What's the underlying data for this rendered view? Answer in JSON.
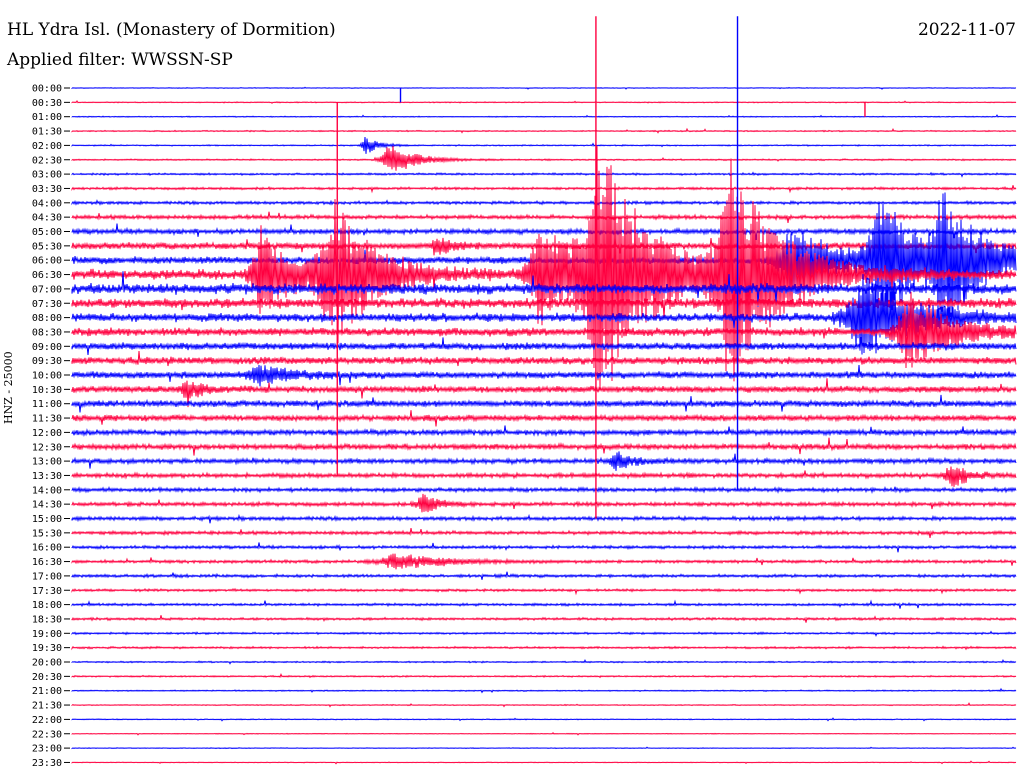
{
  "header": {
    "station_title": "HL Ydra Isl. (Monastery of Dormition)",
    "filter_label": "Applied filter: WWSSN-SP",
    "date": "2022-11-07"
  },
  "chart_data": {
    "type": "line",
    "title": "HL Ydra Isl. (Monastery of Dormition)",
    "subtitle": "Applied filter: WWSSN-SP",
    "date": "2022-11-07",
    "ylabel": "HNZ - 25000",
    "xlabel": "",
    "grid": false,
    "colors": {
      "blue": "#0000ff",
      "red": "#ff0040"
    },
    "row_labels": [
      "00:00",
      "00:30",
      "01:00",
      "01:30",
      "02:00",
      "02:30",
      "03:00",
      "03:30",
      "04:00",
      "04:30",
      "05:00",
      "05:30",
      "06:00",
      "06:30",
      "07:00",
      "07:30",
      "08:00",
      "08:30",
      "09:00",
      "09:30",
      "10:00",
      "10:30",
      "11:00",
      "11:30",
      "12:00",
      "12:30",
      "13:00",
      "13:30",
      "14:00",
      "14:30",
      "15:00",
      "15:30",
      "16:00",
      "16:30",
      "17:00",
      "17:30",
      "18:00",
      "18:30",
      "19:00",
      "19:30",
      "20:00",
      "20:30",
      "21:00",
      "21:30",
      "22:00",
      "22:30",
      "23:00",
      "23:30"
    ],
    "row_noise": [
      0.3,
      0.4,
      0.4,
      0.5,
      0.5,
      0.6,
      0.8,
      1.0,
      1.2,
      1.6,
      2.0,
      2.6,
      3.0,
      4.2,
      4.4,
      4.0,
      3.6,
      3.4,
      3.0,
      3.0,
      2.8,
      2.6,
      2.6,
      2.4,
      2.2,
      2.2,
      2.0,
      1.8,
      1.6,
      1.6,
      1.5,
      1.4,
      1.2,
      1.2,
      1.2,
      1.0,
      1.0,
      1.0,
      0.8,
      0.8,
      0.6,
      0.6,
      0.5,
      0.4,
      0.4,
      0.3,
      0.3,
      0.3
    ],
    "events": [
      {
        "row": 4,
        "x": 0.31,
        "amp": 10,
        "dur": 0.015
      },
      {
        "row": 5,
        "x": 0.335,
        "amp": 18,
        "dur": 0.03
      },
      {
        "row": 13,
        "x": 0.2,
        "amp": 45,
        "dur": 0.04
      },
      {
        "row": 13,
        "x": 0.274,
        "amp": 75,
        "dur": 0.05
      },
      {
        "row": 13,
        "x": 0.495,
        "amp": 55,
        "dur": 0.05
      },
      {
        "row": 13,
        "x": 0.557,
        "amp": 130,
        "dur": 0.06
      },
      {
        "row": 13,
        "x": 0.695,
        "amp": 110,
        "dur": 0.06
      },
      {
        "row": 12,
        "x": 0.76,
        "amp": 40,
        "dur": 0.05
      },
      {
        "row": 12,
        "x": 0.855,
        "amp": 65,
        "dur": 0.05
      },
      {
        "row": 12,
        "x": 0.92,
        "amp": 60,
        "dur": 0.05
      },
      {
        "row": 16,
        "x": 0.835,
        "amp": 45,
        "dur": 0.06
      },
      {
        "row": 17,
        "x": 0.885,
        "amp": 40,
        "dur": 0.05
      },
      {
        "row": 11,
        "x": 0.385,
        "amp": 10,
        "dur": 0.02
      },
      {
        "row": 20,
        "x": 0.195,
        "amp": 10,
        "dur": 0.04
      },
      {
        "row": 21,
        "x": 0.12,
        "amp": 10,
        "dur": 0.02
      },
      {
        "row": 26,
        "x": 0.575,
        "amp": 10,
        "dur": 0.02
      },
      {
        "row": 27,
        "x": 0.93,
        "amp": 14,
        "dur": 0.02
      },
      {
        "row": 29,
        "x": 0.37,
        "amp": 12,
        "dur": 0.02
      },
      {
        "row": 33,
        "x": 0.34,
        "amp": 8,
        "dur": 0.06
      }
    ],
    "spikes": [
      {
        "x": 0.555,
        "top_row": -5,
        "bottom_row": 30
      },
      {
        "x": 0.705,
        "top_row": -5,
        "bottom_row": 28
      },
      {
        "x": 0.281,
        "top_row": 1,
        "bottom_row": 27
      },
      {
        "x": 0.348,
        "top_row": 0,
        "bottom_row": 1
      },
      {
        "x": 0.84,
        "top_row": 1,
        "bottom_row": 2
      }
    ]
  }
}
